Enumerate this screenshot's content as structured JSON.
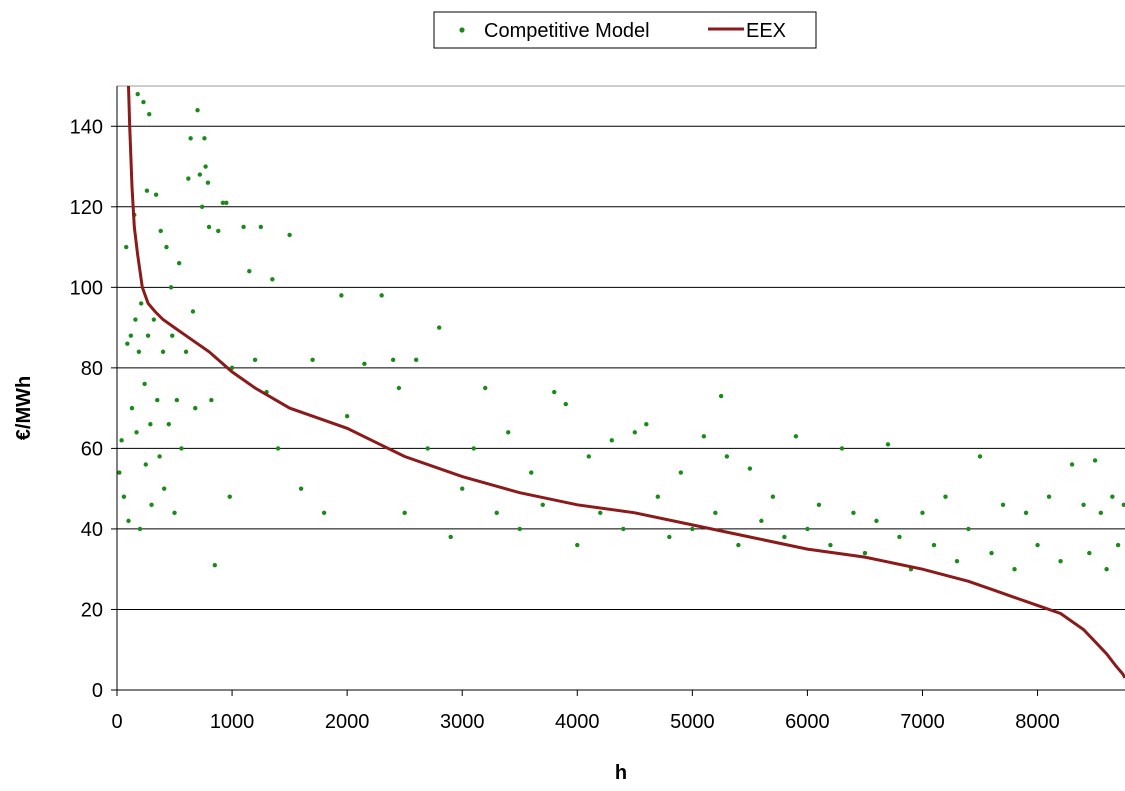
{
  "chart_data": {
    "type": "scatter",
    "title": "",
    "xlabel": "h",
    "ylabel": "€/MWh",
    "xlim": [
      0,
      8760
    ],
    "ylim": [
      0,
      150
    ],
    "xticks": [
      0,
      1000,
      2000,
      3000,
      4000,
      5000,
      6000,
      7000,
      8000
    ],
    "yticks": [
      0,
      20,
      40,
      60,
      80,
      100,
      120,
      140
    ],
    "grid": "horizontal",
    "legend_position": "top-center",
    "legend": [
      "Competitive Model",
      "EEX"
    ],
    "series": [
      {
        "name": "Competitive Model",
        "kind": "scatter",
        "color": "#1a8a1a",
        "points": [
          [
            20,
            54
          ],
          [
            40,
            62
          ],
          [
            60,
            48
          ],
          [
            80,
            110
          ],
          [
            90,
            86
          ],
          [
            100,
            42
          ],
          [
            120,
            88
          ],
          [
            130,
            70
          ],
          [
            150,
            118
          ],
          [
            160,
            92
          ],
          [
            170,
            64
          ],
          [
            180,
            148
          ],
          [
            190,
            84
          ],
          [
            200,
            40
          ],
          [
            210,
            96
          ],
          [
            230,
            146
          ],
          [
            240,
            76
          ],
          [
            250,
            56
          ],
          [
            260,
            124
          ],
          [
            270,
            88
          ],
          [
            280,
            143
          ],
          [
            290,
            66
          ],
          [
            300,
            46
          ],
          [
            320,
            92
          ],
          [
            340,
            123
          ],
          [
            350,
            72
          ],
          [
            370,
            58
          ],
          [
            380,
            114
          ],
          [
            400,
            84
          ],
          [
            410,
            50
          ],
          [
            430,
            110
          ],
          [
            450,
            66
          ],
          [
            470,
            100
          ],
          [
            480,
            88
          ],
          [
            500,
            44
          ],
          [
            520,
            72
          ],
          [
            540,
            106
          ],
          [
            560,
            60
          ],
          [
            600,
            84
          ],
          [
            620,
            127
          ],
          [
            640,
            137
          ],
          [
            660,
            94
          ],
          [
            680,
            70
          ],
          [
            700,
            144
          ],
          [
            720,
            128
          ],
          [
            740,
            120
          ],
          [
            760,
            137
          ],
          [
            770,
            130
          ],
          [
            790,
            126
          ],
          [
            800,
            115
          ],
          [
            820,
            72
          ],
          [
            850,
            31
          ],
          [
            880,
            114
          ],
          [
            920,
            121
          ],
          [
            950,
            121
          ],
          [
            980,
            48
          ],
          [
            1000,
            80
          ],
          [
            1100,
            115
          ],
          [
            1150,
            104
          ],
          [
            1200,
            82
          ],
          [
            1250,
            115
          ],
          [
            1300,
            74
          ],
          [
            1350,
            102
          ],
          [
            1400,
            60
          ],
          [
            1500,
            113
          ],
          [
            1600,
            50
          ],
          [
            1700,
            82
          ],
          [
            1800,
            44
          ],
          [
            1950,
            98
          ],
          [
            2000,
            68
          ],
          [
            2150,
            81
          ],
          [
            2300,
            98
          ],
          [
            2400,
            82
          ],
          [
            2450,
            75
          ],
          [
            2500,
            44
          ],
          [
            2600,
            82
          ],
          [
            2700,
            60
          ],
          [
            2800,
            90
          ],
          [
            2900,
            38
          ],
          [
            3000,
            50
          ],
          [
            3100,
            60
          ],
          [
            3200,
            75
          ],
          [
            3300,
            44
          ],
          [
            3400,
            64
          ],
          [
            3500,
            40
          ],
          [
            3600,
            54
          ],
          [
            3700,
            46
          ],
          [
            3800,
            74
          ],
          [
            3900,
            71
          ],
          [
            4000,
            36
          ],
          [
            4100,
            58
          ],
          [
            4200,
            44
          ],
          [
            4300,
            62
          ],
          [
            4400,
            40
          ],
          [
            4500,
            64
          ],
          [
            4600,
            66
          ],
          [
            4700,
            48
          ],
          [
            4800,
            38
          ],
          [
            4900,
            54
          ],
          [
            5000,
            40
          ],
          [
            5100,
            63
          ],
          [
            5200,
            44
          ],
          [
            5250,
            73
          ],
          [
            5300,
            58
          ],
          [
            5400,
            36
          ],
          [
            5500,
            55
          ],
          [
            5600,
            42
          ],
          [
            5700,
            48
          ],
          [
            5800,
            38
          ],
          [
            5900,
            63
          ],
          [
            6000,
            40
          ],
          [
            6100,
            46
          ],
          [
            6200,
            36
          ],
          [
            6300,
            60
          ],
          [
            6400,
            44
          ],
          [
            6500,
            34
          ],
          [
            6600,
            42
          ],
          [
            6700,
            61
          ],
          [
            6800,
            38
          ],
          [
            6900,
            30
          ],
          [
            7000,
            44
          ],
          [
            7100,
            36
          ],
          [
            7200,
            48
          ],
          [
            7300,
            32
          ],
          [
            7400,
            40
          ],
          [
            7500,
            58
          ],
          [
            7600,
            34
          ],
          [
            7700,
            46
          ],
          [
            7800,
            30
          ],
          [
            7900,
            44
          ],
          [
            8000,
            36
          ],
          [
            8100,
            48
          ],
          [
            8200,
            32
          ],
          [
            8300,
            56
          ],
          [
            8400,
            46
          ],
          [
            8450,
            34
          ],
          [
            8500,
            57
          ],
          [
            8550,
            44
          ],
          [
            8600,
            30
          ],
          [
            8650,
            48
          ],
          [
            8700,
            36
          ],
          [
            8750,
            46
          ]
        ]
      },
      {
        "name": "EEX",
        "kind": "line",
        "color": "#8b1a1a",
        "x": [
          100,
          110,
          130,
          150,
          180,
          220,
          270,
          330,
          400,
          500,
          600,
          800,
          1000,
          1200,
          1500,
          1800,
          2000,
          2500,
          3000,
          3500,
          4000,
          4500,
          5000,
          5500,
          6000,
          6500,
          7000,
          7400,
          7600,
          7800,
          8000,
          8200,
          8400,
          8500,
          8600,
          8680,
          8740,
          8760
        ],
        "y": [
          150,
          140,
          125,
          115,
          108,
          100,
          96,
          94,
          92,
          90,
          88,
          84,
          79,
          75,
          70,
          67,
          65,
          58,
          53,
          49,
          46,
          44,
          41,
          38,
          35,
          33,
          30,
          27,
          25,
          23,
          21,
          19,
          15,
          12,
          9,
          6,
          4,
          3
        ]
      }
    ]
  }
}
